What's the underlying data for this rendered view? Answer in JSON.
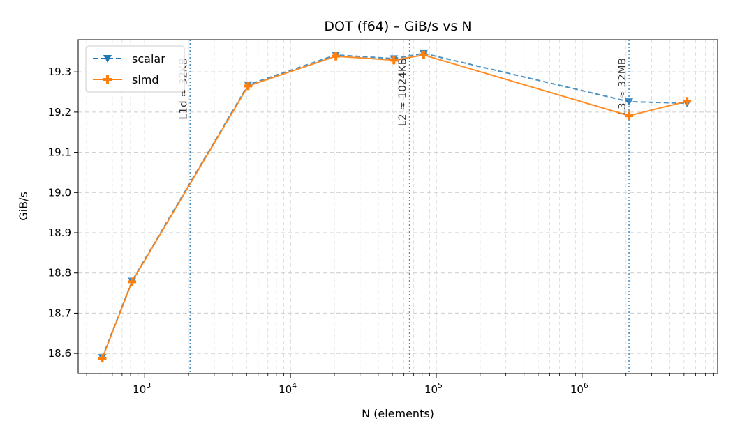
{
  "chart_data": {
    "type": "line",
    "title": "DOT (f64) – GiB/s vs N",
    "xlabel": "N (elements)",
    "ylabel": "GiB/s",
    "xscale": "log",
    "xlim": [
      350,
      8500000
    ],
    "ylim": [
      18.55,
      19.38
    ],
    "x_ticks": [
      {
        "value": 1000,
        "base": "10",
        "exp": "3"
      },
      {
        "value": 10000,
        "base": "10",
        "exp": "4"
      },
      {
        "value": 100000,
        "base": "10",
        "exp": "5"
      },
      {
        "value": 1000000,
        "base": "10",
        "exp": "6"
      }
    ],
    "y_ticks": [
      "18.6",
      "18.7",
      "18.8",
      "18.9",
      "19.0",
      "19.1",
      "19.2",
      "19.3"
    ],
    "grid": true,
    "legend_position": "top-left",
    "x": [
      512,
      819,
      5120,
      20480,
      51200,
      81920,
      2097152,
      5242880
    ],
    "series": [
      {
        "name": "scalar",
        "color": "#1f77b4",
        "style": "dashed",
        "marker": "triangle-down",
        "values": [
          18.59,
          18.78,
          19.268,
          19.342,
          19.333,
          19.346,
          19.226,
          19.222
        ]
      },
      {
        "name": "simd",
        "color": "#ff7f0e",
        "style": "solid",
        "marker": "plus",
        "values": [
          18.588,
          18.778,
          19.265,
          19.339,
          19.329,
          19.342,
          19.191,
          19.227
        ]
      }
    ],
    "annotations": [
      {
        "label": "L1d ≈ 32KB",
        "x": 2048,
        "color": "#1f77b4"
      },
      {
        "label": "L2 ≈ 1024KB",
        "x": 65536,
        "color": "#1f77b4"
      },
      {
        "label": "L3 ≈ 32MB",
        "x": 2097152,
        "color": "#1f77b4"
      }
    ]
  }
}
